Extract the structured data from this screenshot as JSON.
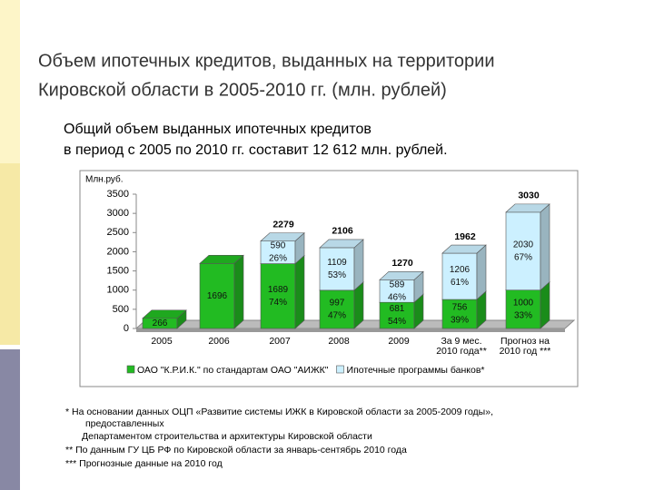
{
  "slide": {
    "title_lines": [
      "Объем ипотечных кредитов, выданных на территории",
      "Кировской области в 2005-2010 гг. (млн. рублей)"
    ],
    "subtitle_lines": [
      "Общий объем выданных ипотечных кредитов",
      "в период с 2005 по 2010 гг. составит 12 612 млн. рублей."
    ],
    "footnotes": [
      "*   На основании данных ОЦП «Развитие системы ИЖК в Кировской области за 2005-2009 годы»,",
      "предоставленных",
      "Департаментом строительства и архитектуры Кировской области",
      "** По данным ГУ ЦБ РФ по Кировской области за январь-сентябрь 2010 года",
      "*** Прогнозные данные на 2010 год"
    ]
  },
  "chart_data": {
    "type": "stacked-bar-3d",
    "y_label": "Млн.руб.",
    "categories": [
      [
        "2005"
      ],
      [
        "2006"
      ],
      [
        "2007"
      ],
      [
        "2008"
      ],
      [
        "2009"
      ],
      [
        "За 9 мес.",
        "2010 года**"
      ],
      [
        "Прогноз на",
        "2010 год ***"
      ]
    ],
    "series": [
      {
        "name": "ОАО \"К.Р.И.К.\" по стандартам ОАО \"АИЖК\"",
        "color": "#22bb22",
        "values": [
          266,
          1696,
          1689,
          997,
          681,
          756,
          1000
        ],
        "share_labels": [
          null,
          null,
          "74%",
          "47%",
          "54%",
          "39%",
          "33%"
        ]
      },
      {
        "name": "Ипотечные программы банков*",
        "color": "#ccf0ff",
        "values": [
          null,
          null,
          590,
          1109,
          589,
          1206,
          2030
        ],
        "share_labels": [
          null,
          null,
          "26%",
          "53%",
          "46%",
          "61%",
          "67%"
        ]
      }
    ],
    "totals": [
      null,
      null,
      2279,
      2106,
      1270,
      1962,
      3030
    ],
    "ylim": [
      0,
      3500
    ],
    "yticks": [
      0,
      500,
      1000,
      1500,
      2000,
      2500,
      3000,
      3500
    ]
  }
}
